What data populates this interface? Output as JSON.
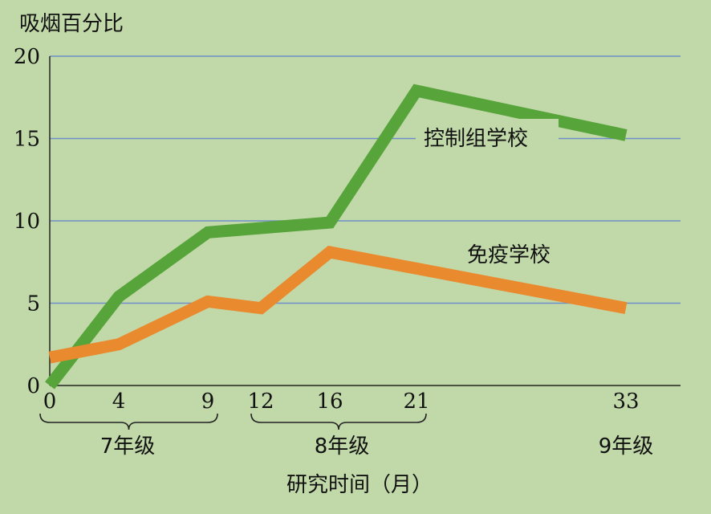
{
  "chart_data": {
    "type": "line",
    "ylabel": "吸烟百分比",
    "xlabel": "研究时间（月）",
    "ylim": [
      0,
      20
    ],
    "yticks": [
      "0",
      "5",
      "10",
      "15",
      "20"
    ],
    "xticks": [
      "0",
      "4",
      "9",
      "12",
      "16",
      "21",
      "33"
    ],
    "grid": true,
    "groups": [
      {
        "label": "7年级",
        "from": 0,
        "to": 9
      },
      {
        "label": "8年级",
        "from": 12,
        "to": 21
      },
      {
        "label": "9年级"
      }
    ],
    "series": [
      {
        "name": "控制组学校",
        "color": "#57a43b",
        "x": [
          0,
          4,
          9,
          16,
          21,
          33
        ],
        "y": [
          0,
          5.4,
          9.3,
          9.9,
          17.9,
          15.2
        ]
      },
      {
        "name": "免疫学校",
        "color": "#ea8a2f",
        "x": [
          0,
          4,
          9,
          12,
          16,
          33
        ],
        "y": [
          1.7,
          2.5,
          5.1,
          4.7,
          8.1,
          4.7
        ]
      }
    ]
  }
}
